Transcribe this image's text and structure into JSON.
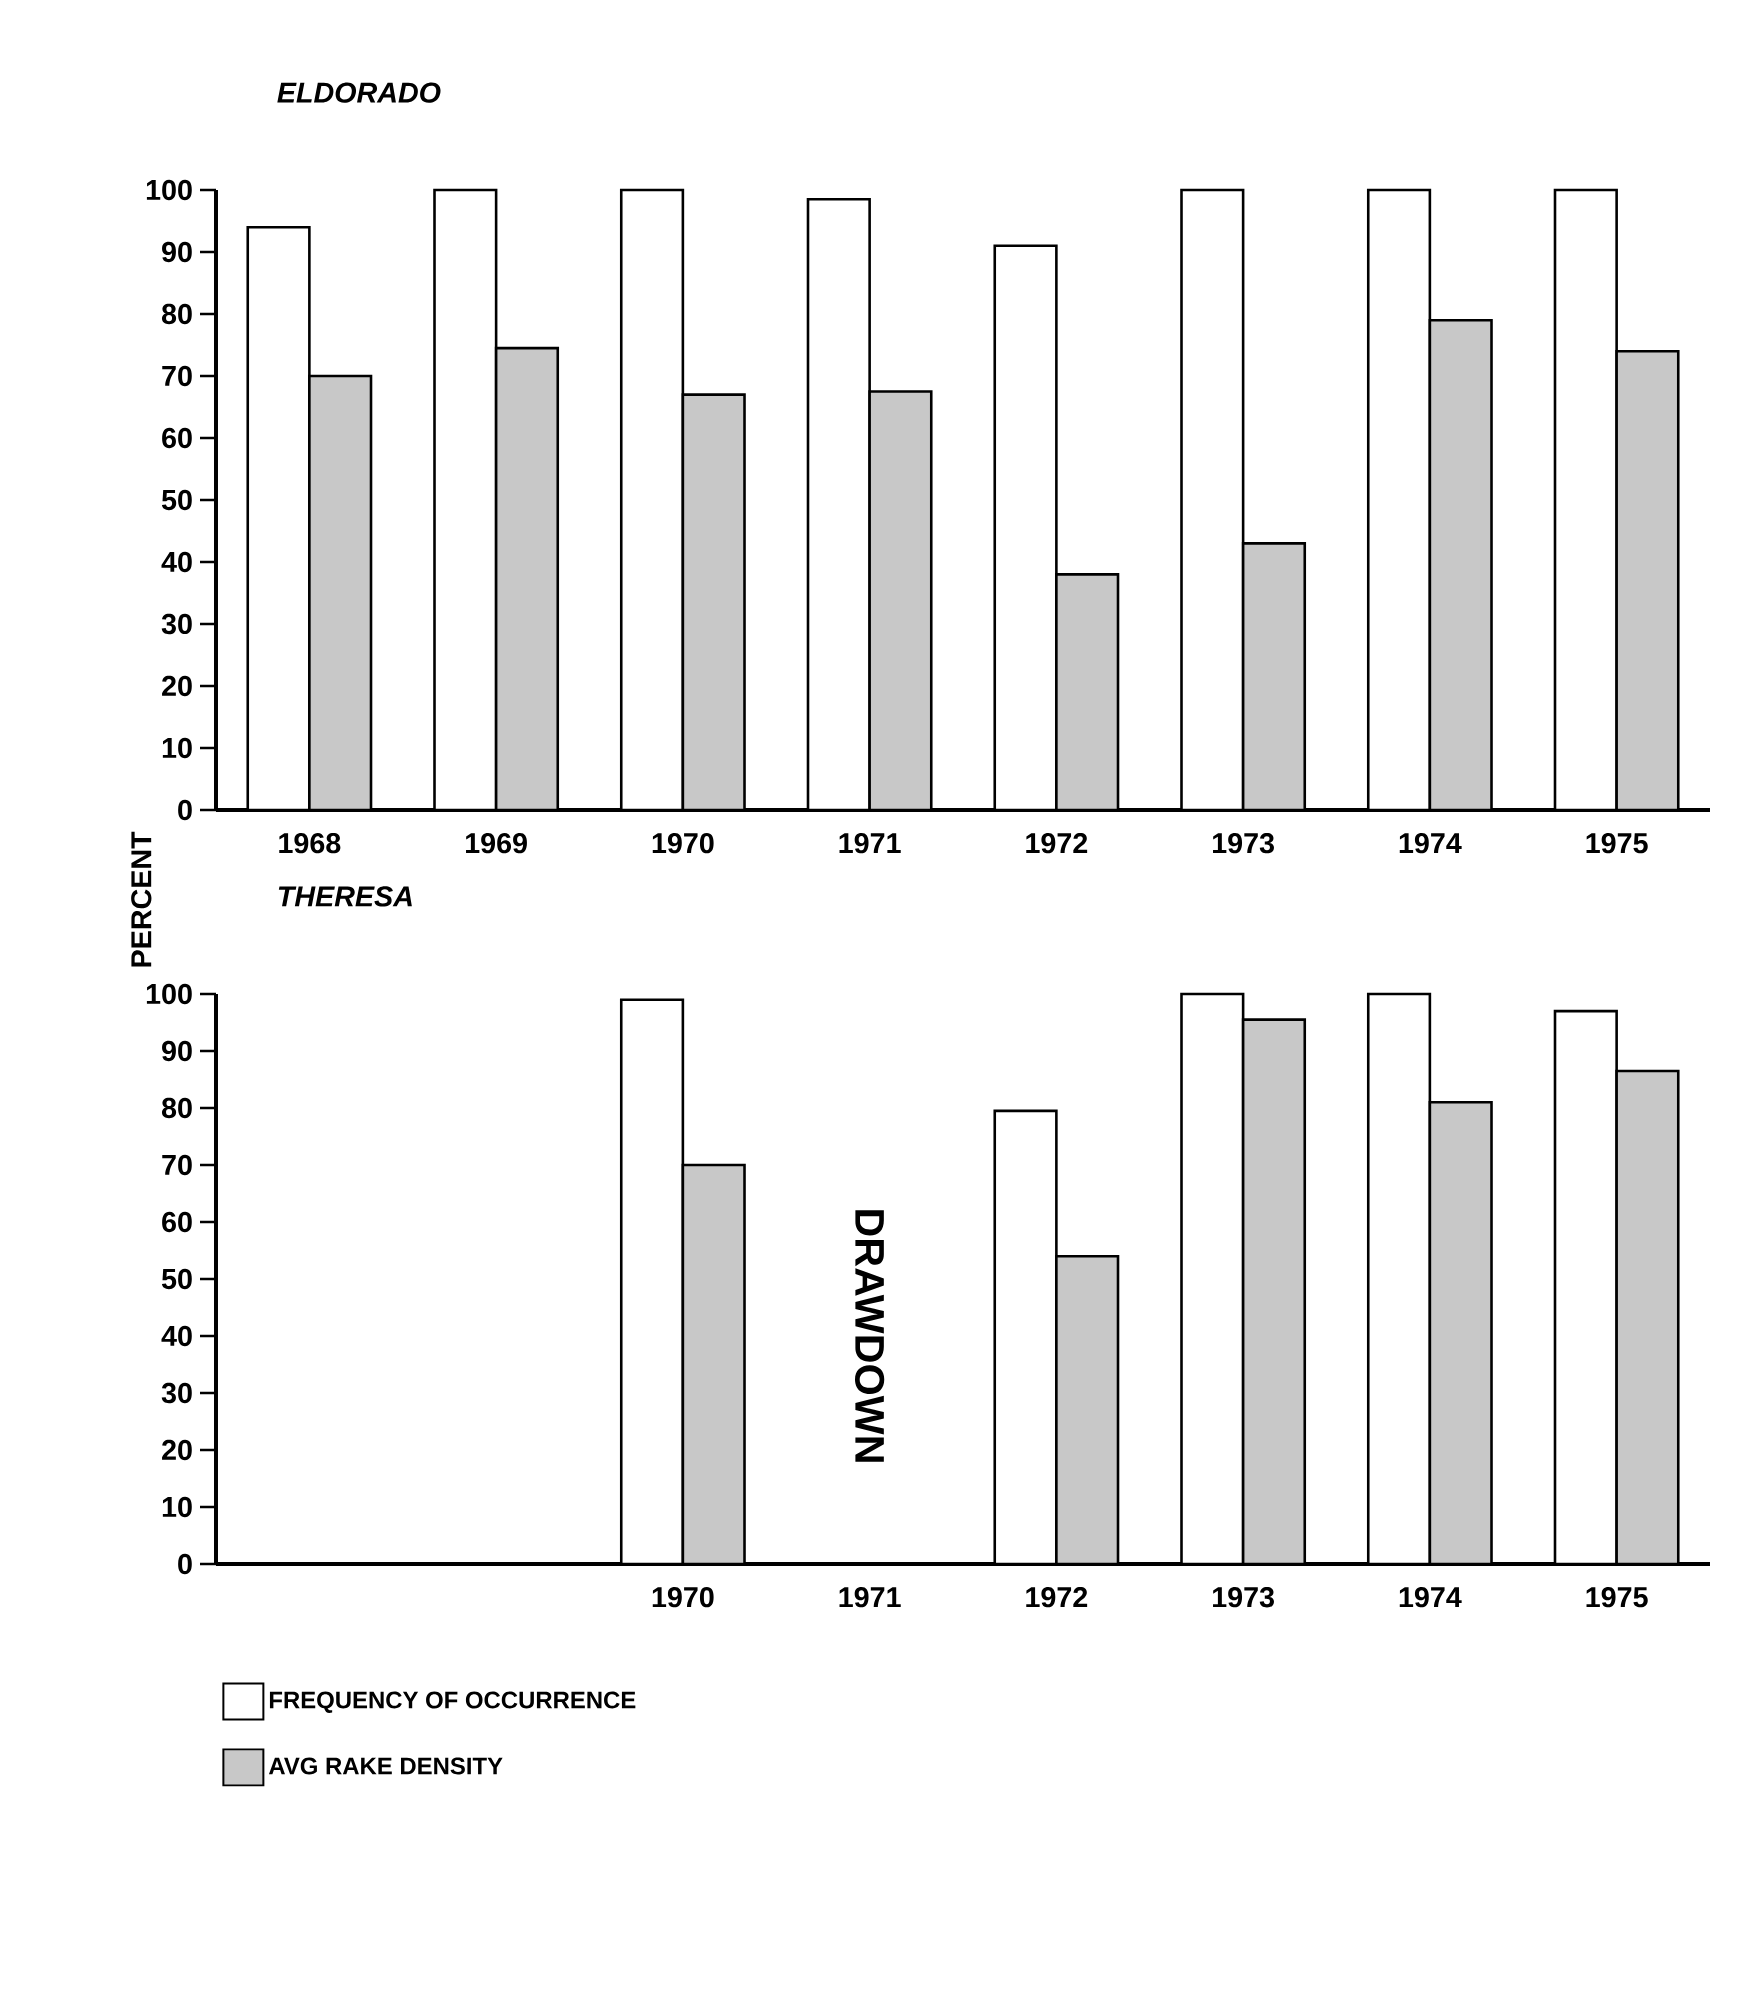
{
  "chart_data": [
    {
      "type": "bar",
      "title": "ELDORADO",
      "ylabel": "PERCENT",
      "categories": [
        "1968",
        "1969",
        "1970",
        "1971",
        "1972",
        "1973",
        "1974",
        "1975"
      ],
      "ylim": [
        0,
        100
      ],
      "yticks": [
        0,
        10,
        20,
        30,
        40,
        50,
        60,
        70,
        80,
        90,
        100
      ],
      "series": [
        {
          "color": "#ffffff",
          "values": [
            94,
            100,
            100,
            98.5,
            91,
            100,
            100,
            100
          ]
        },
        {
          "color": "#c8c8c8",
          "values": [
            70,
            74.5,
            67,
            67.5,
            38,
            43,
            79,
            74
          ]
        }
      ]
    },
    {
      "type": "bar",
      "title": "THERESA",
      "categories": [
        null,
        null,
        "1970",
        "1971",
        "1972",
        "1973",
        "1974",
        "1975"
      ],
      "ylim": [
        0,
        100
      ],
      "yticks": [
        0,
        10,
        20,
        30,
        40,
        50,
        60,
        70,
        80,
        90,
        100
      ],
      "legend": "bottom",
      "annotations": [
        "DRAWDOWN"
      ],
      "series": [
        {
          "name": "FREQUENCY OF OCCURRENCE",
          "color": "#ffffff",
          "values": [
            null,
            null,
            99,
            null,
            79.5,
            100,
            100,
            97
          ]
        },
        {
          "name": "AVG RAKE DENSITY",
          "color": "#c8c8c8",
          "values": [
            null,
            null,
            70,
            null,
            54,
            95.5,
            81,
            86.5
          ]
        }
      ]
    }
  ]
}
